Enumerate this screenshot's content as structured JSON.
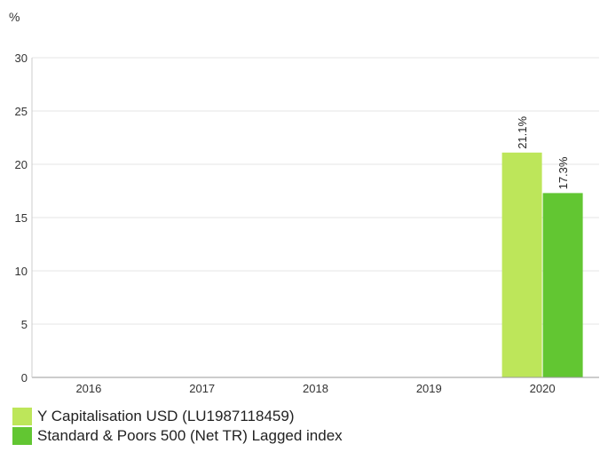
{
  "chart_data": {
    "type": "bar",
    "ylabel": "%",
    "xlabel": "",
    "title": "",
    "categories": [
      "2016",
      "2017",
      "2018",
      "2019",
      "2020"
    ],
    "ylim": [
      0,
      30
    ],
    "yticks": [
      0,
      5,
      10,
      15,
      20,
      25,
      30
    ],
    "grid": true,
    "legend_position": "bottom-left",
    "series": [
      {
        "name": "Y Capitalisation USD (LU1987118459)",
        "color": "#bde65a",
        "values": [
          null,
          null,
          null,
          null,
          21.1
        ],
        "labels": [
          null,
          null,
          null,
          null,
          "21.1%"
        ]
      },
      {
        "name": "Standard & Poors 500 (Net TR) Lagged index",
        "color": "#62c632",
        "values": [
          null,
          null,
          null,
          null,
          17.3
        ],
        "labels": [
          null,
          null,
          null,
          null,
          "17.3%"
        ]
      }
    ]
  }
}
